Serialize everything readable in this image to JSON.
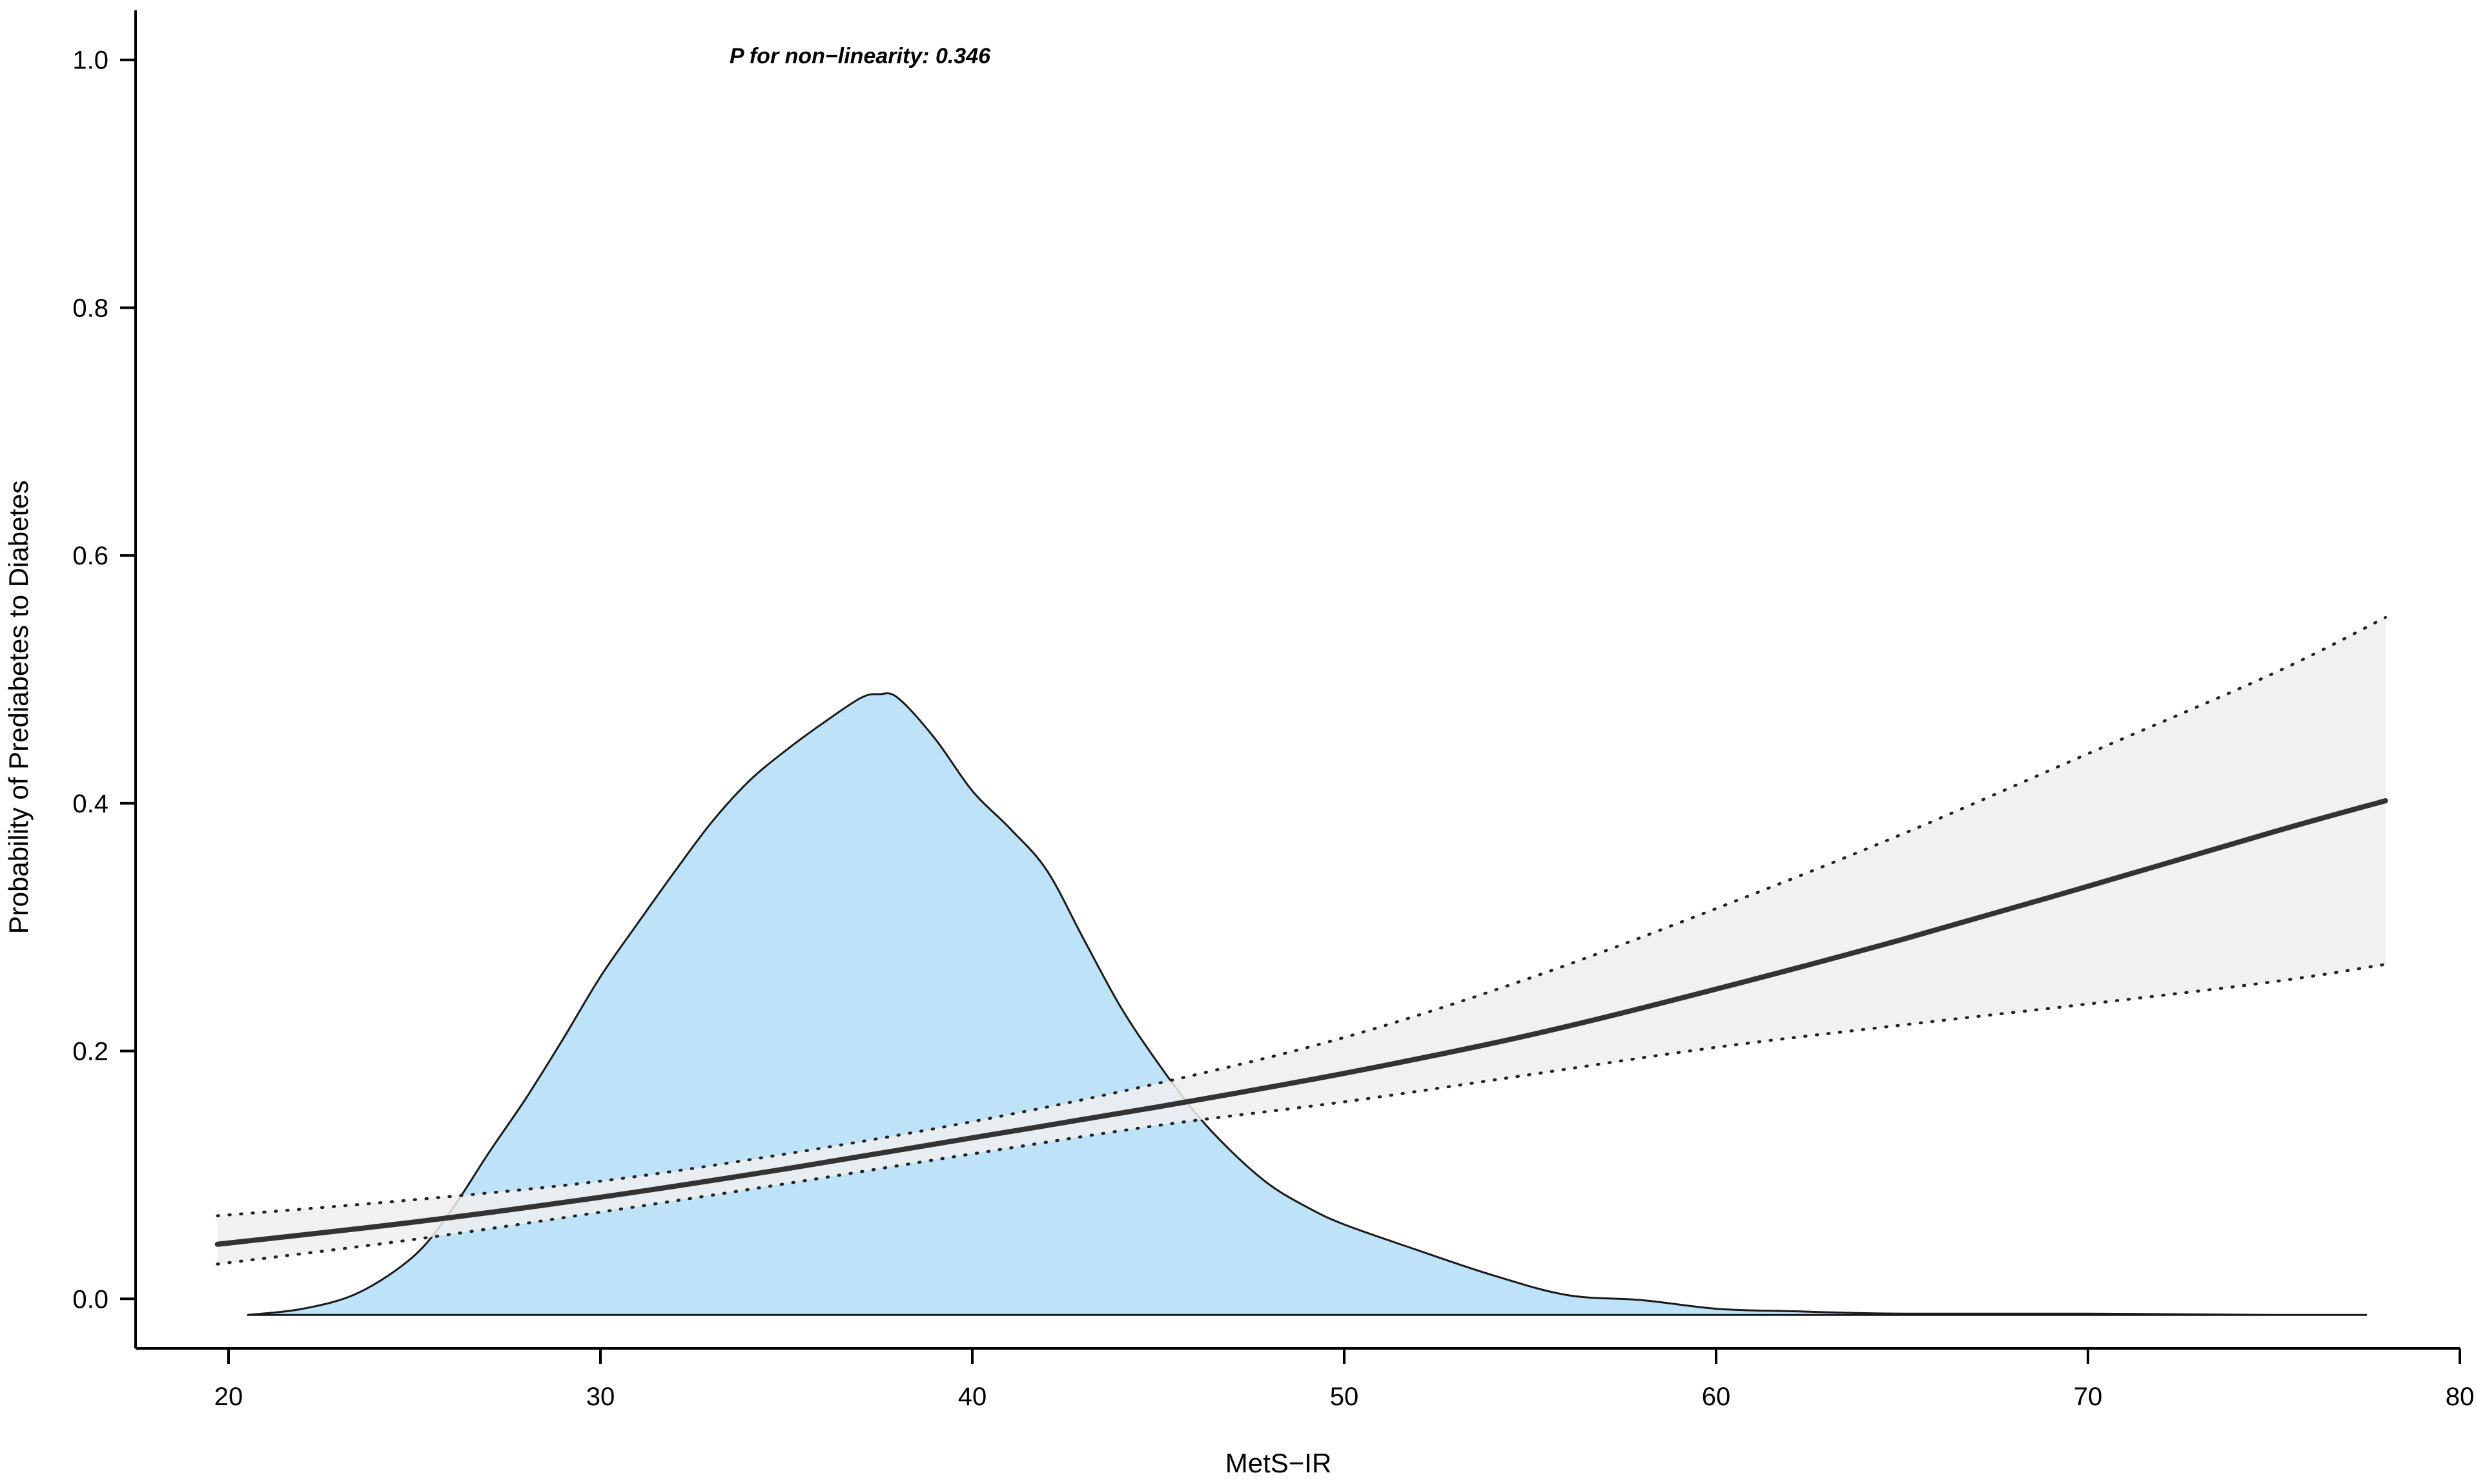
{
  "chart_data": {
    "type": "line",
    "xlabel": "MetS−IR",
    "ylabel": "Probability of Prediabetes to Diabetes",
    "annotation": "P for non−linearity: 0.346",
    "xlim": [
      17.5,
      80
    ],
    "ylim": [
      -0.04,
      1.04
    ],
    "xticks": [
      "20",
      "30",
      "40",
      "50",
      "60",
      "70",
      "80"
    ],
    "yticks": [
      "0.0",
      "0.2",
      "0.4",
      "0.6",
      "0.8",
      "1.0"
    ],
    "grid": false,
    "colors": {
      "density_fill": "#bee3f9",
      "density_stroke": "#1a1a1a",
      "ci_band": "#efefef",
      "estimate_line": "#333333",
      "ci_lines": "#222222"
    },
    "series": [
      {
        "role": "estimate",
        "style": "solid",
        "x": [
          19.7,
          25,
          30,
          35,
          40,
          45,
          50,
          55,
          60,
          65,
          70,
          75,
          78
        ],
        "y": [
          0.044,
          0.062,
          0.082,
          0.105,
          0.13,
          0.155,
          0.182,
          0.213,
          0.25,
          0.29,
          0.333,
          0.377,
          0.402
        ]
      },
      {
        "role": "upper_ci",
        "style": "dotted",
        "x": [
          19.7,
          25,
          30,
          35,
          40,
          45,
          50,
          55,
          60,
          65,
          70,
          75,
          78
        ],
        "y": [
          0.067,
          0.08,
          0.095,
          0.117,
          0.143,
          0.174,
          0.211,
          0.259,
          0.315,
          0.375,
          0.44,
          0.505,
          0.55
        ]
      },
      {
        "role": "lower_ci",
        "style": "dotted",
        "x": [
          19.7,
          25,
          30,
          35,
          40,
          45,
          50,
          55,
          60,
          65,
          70,
          75,
          78
        ],
        "y": [
          0.028,
          0.048,
          0.07,
          0.093,
          0.117,
          0.14,
          0.159,
          0.181,
          0.203,
          0.221,
          0.238,
          0.256,
          0.27
        ]
      },
      {
        "role": "density",
        "style": "filled",
        "x": [
          20.5,
          22,
          23.5,
          25,
          26,
          27,
          28,
          29,
          30,
          31,
          32,
          33,
          34,
          35,
          36,
          37,
          37.5,
          38,
          39,
          40,
          41,
          42,
          43,
          44,
          45,
          46,
          47,
          48,
          49,
          50,
          52,
          54,
          56,
          58,
          60,
          62,
          65,
          70,
          75,
          77.5
        ],
        "y": [
          -0.013,
          -0.008,
          0.005,
          0.035,
          0.072,
          0.118,
          0.162,
          0.21,
          0.26,
          0.303,
          0.345,
          0.385,
          0.418,
          0.443,
          0.465,
          0.485,
          0.488,
          0.485,
          0.452,
          0.41,
          0.38,
          0.346,
          0.29,
          0.235,
          0.19,
          0.15,
          0.118,
          0.092,
          0.074,
          0.06,
          0.039,
          0.019,
          0.003,
          -0.001,
          -0.008,
          -0.01,
          -0.012,
          -0.012,
          -0.013,
          -0.013
        ]
      }
    ]
  }
}
